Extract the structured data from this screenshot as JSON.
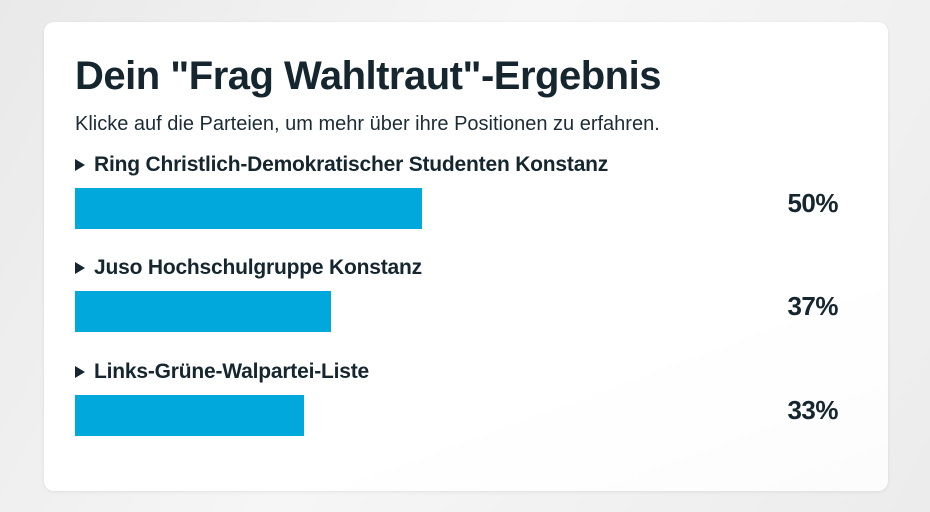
{
  "card": {
    "title": "Dein \"Frag Wahltraut\"-Ergebnis",
    "instruction": "Klicke auf die Parteien, um mehr über ihre Positionen zu erfahren."
  },
  "results": [
    {
      "party": "Ring Christlich-Demokratischer Studenten Konstanz",
      "percent": 50,
      "percent_label": "50%"
    },
    {
      "party": "Juso Hochschulgruppe Konstanz",
      "percent": 37,
      "percent_label": "37%"
    },
    {
      "party": "Links-Grüne-Walpartei-Liste",
      "percent": 33,
      "percent_label": "33%"
    }
  ],
  "chart_data": {
    "type": "bar",
    "orientation": "horizontal",
    "title": "Dein \"Frag Wahltraut\"-Ergebnis",
    "categories": [
      "Ring Christlich-Demokratischer Studenten Konstanz",
      "Juso Hochschulgruppe Konstanz",
      "Links-Grüne-Walpartei-Liste"
    ],
    "values": [
      50,
      37,
      33
    ],
    "value_labels": [
      "50%",
      "37%",
      "33%"
    ],
    "xlim": [
      0,
      100
    ],
    "grid": false,
    "bar_color": "#00a8dc"
  },
  "colors": {
    "bar": "#00a8dc",
    "text_dark": "#15262f",
    "card_bg": "#ffffff",
    "page_bg": "#ededed"
  }
}
